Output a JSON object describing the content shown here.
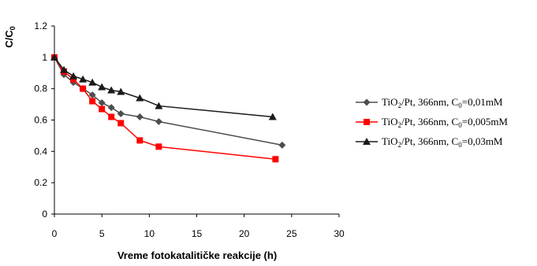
{
  "chart_data": {
    "type": "line",
    "xlabel": "Vreme fotokatalitičke reakcije (h)",
    "ylabel": "C/C0",
    "xlim": [
      0,
      30
    ],
    "ylim": [
      0,
      1.2
    ],
    "x_ticks": [
      "0",
      "5",
      "10",
      "15",
      "20",
      "25",
      "30"
    ],
    "y_ticks": [
      "0",
      "0.2",
      "0.4",
      "0.6",
      "0.8",
      "1",
      "1.2"
    ],
    "grid": false,
    "legend_position": "right",
    "series": [
      {
        "name": "TiO2/Pt, 366nm, C0=0,01mM",
        "color": "#4d4d4d",
        "marker": "diamond",
        "x": [
          0,
          1,
          2,
          3,
          4,
          5,
          6,
          7,
          9,
          11,
          24
        ],
        "y": [
          1.0,
          0.89,
          0.84,
          0.8,
          0.76,
          0.71,
          0.68,
          0.64,
          0.62,
          0.59,
          0.44
        ]
      },
      {
        "name": "TiO2/Pt, 366nm, C0=0,005mM",
        "color": "#ff0000",
        "marker": "square",
        "x": [
          0,
          1,
          2,
          3,
          4,
          5,
          6,
          7,
          9,
          11,
          23.3
        ],
        "y": [
          1.0,
          0.91,
          0.86,
          0.8,
          0.72,
          0.67,
          0.62,
          0.58,
          0.47,
          0.43,
          0.35
        ]
      },
      {
        "name": "TiO2/Pt, 366nm, C0=0,03mM",
        "color": "#1a1a1a",
        "marker": "triangle",
        "x": [
          0,
          1,
          2,
          3,
          4,
          5,
          6,
          7,
          9,
          11,
          23
        ],
        "y": [
          1.0,
          0.92,
          0.88,
          0.86,
          0.84,
          0.81,
          0.79,
          0.78,
          0.74,
          0.69,
          0.62
        ]
      }
    ]
  }
}
